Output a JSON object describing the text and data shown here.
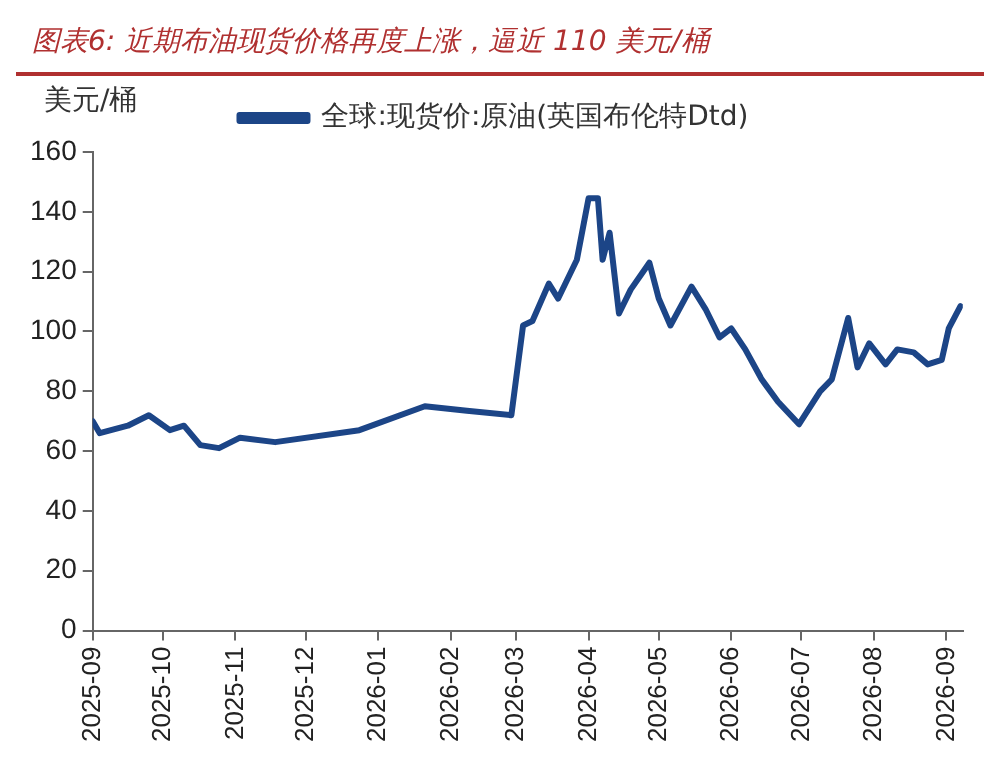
{
  "chart_data": {
    "type": "line",
    "title": "图表6: 近期布油现货价格再度上涨，逼近 110 美元/桶",
    "ylabel": "美元/桶",
    "legend": "top",
    "x": [
      "2025-09-01",
      "2025-09-04",
      "2025-09-16",
      "2025-09-25",
      "2025-10-04",
      "2025-10-10",
      "2025-10-17",
      "2025-10-25",
      "2025-11-03",
      "2025-11-18",
      "2025-12-24",
      "2026-01-21",
      "2026-02-08",
      "2026-02-27",
      "2026-03-04",
      "2026-03-08",
      "2026-03-15",
      "2026-03-19",
      "2026-03-27",
      "2026-04-01",
      "2026-04-05",
      "2026-04-07",
      "2026-04-10",
      "2026-04-14",
      "2026-04-19",
      "2026-04-27",
      "2026-05-01",
      "2026-05-06",
      "2026-05-15",
      "2026-05-21",
      "2026-05-27",
      "2026-06-01",
      "2026-06-07",
      "2026-06-14",
      "2026-06-21",
      "2026-06-30",
      "2026-07-09",
      "2026-07-14",
      "2026-07-21",
      "2026-07-25",
      "2026-07-30",
      "2026-08-06",
      "2026-08-11",
      "2026-08-18",
      "2026-08-24",
      "2026-08-30",
      "2026-09-02",
      "2026-09-07"
    ],
    "series": [
      {
        "name": "全球:现货价:原油(英国布伦特Dtd)",
        "color": "#1c4587",
        "values": [
          70,
          66,
          68.5,
          72,
          67,
          68.5,
          62,
          61,
          64.5,
          63,
          67,
          75,
          73.5,
          72,
          102,
          103.5,
          116,
          111,
          124,
          144.5,
          144.5,
          124,
          133,
          106,
          114,
          123,
          111,
          102,
          115,
          107.5,
          98,
          101,
          94,
          84,
          76.5,
          69,
          80,
          84,
          104.5,
          88,
          96,
          89,
          94,
          93,
          89,
          90.5,
          101,
          108.5
        ]
      }
    ],
    "xlim": [
      "2025-09-01",
      "2026-09-08"
    ],
    "xticks": [
      "2025-09",
      "2025-10",
      "2025-11",
      "2025-12",
      "2026-01",
      "2026-02",
      "2026-03",
      "2026-04",
      "2026-05",
      "2026-06",
      "2026-07",
      "2026-08",
      "2026-09"
    ],
    "ylim": [
      0,
      160
    ],
    "yticks": [
      0,
      20,
      40,
      60,
      80,
      100,
      120,
      140,
      160
    ]
  }
}
